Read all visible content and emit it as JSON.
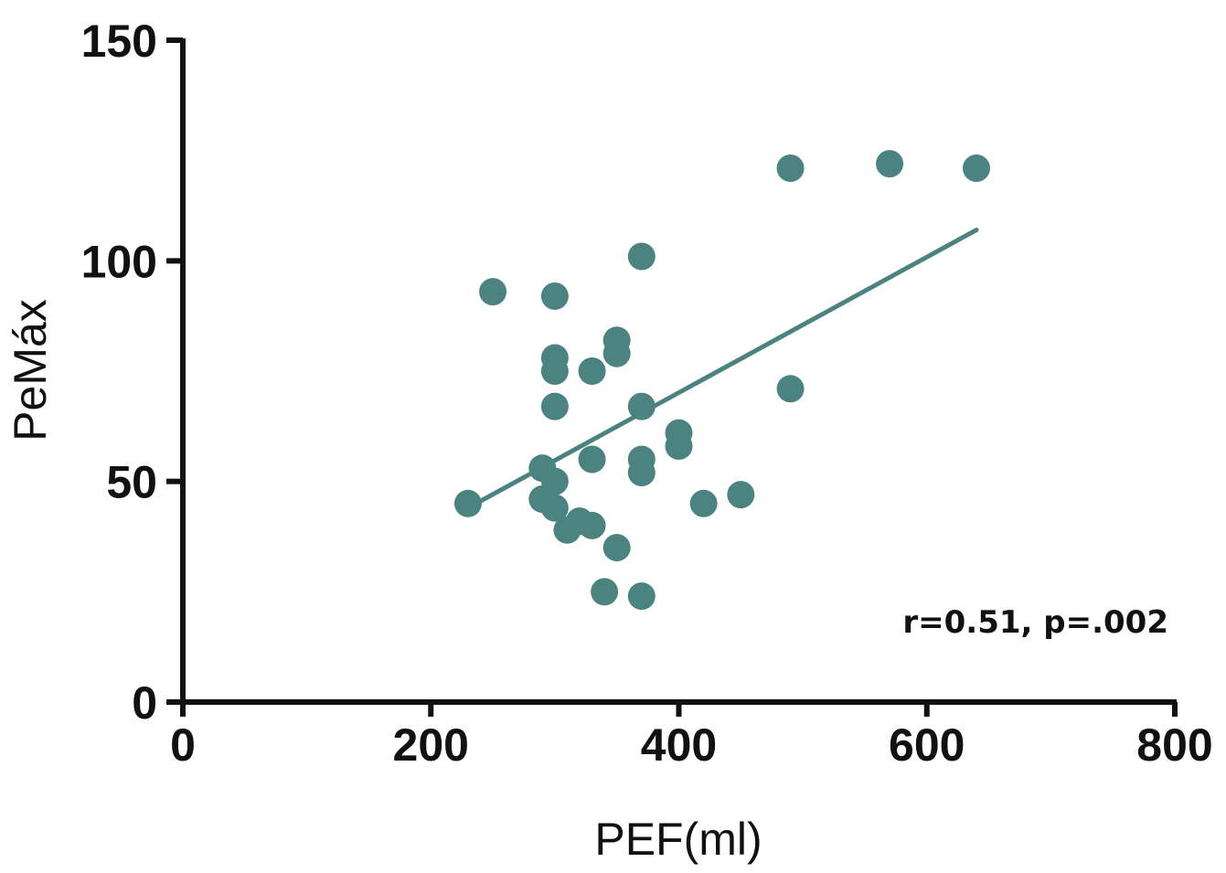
{
  "chart_data": {
    "type": "scatter",
    "xlabel": "PEF(ml)",
    "ylabel": "PeMáx",
    "xlim": [
      0,
      800
    ],
    "ylim": [
      0,
      150
    ],
    "x_ticks": [
      0,
      200,
      400,
      600,
      800
    ],
    "y_ticks": [
      0,
      50,
      100,
      150
    ],
    "x_tick_labels": [
      "0",
      "200",
      "400",
      "600",
      "800"
    ],
    "y_tick_labels": [
      "0",
      "50",
      "100",
      "150"
    ],
    "grid": false,
    "marker_color": "#4a8380",
    "line_color": "#4a8380",
    "axis_color": "#111111",
    "series": [
      {
        "points": [
          {
            "x": 230,
            "y": 45
          },
          {
            "x": 250,
            "y": 93
          },
          {
            "x": 290,
            "y": 53
          },
          {
            "x": 290,
            "y": 46
          },
          {
            "x": 300,
            "y": 92
          },
          {
            "x": 300,
            "y": 78
          },
          {
            "x": 300,
            "y": 75
          },
          {
            "x": 300,
            "y": 67
          },
          {
            "x": 300,
            "y": 50
          },
          {
            "x": 300,
            "y": 44
          },
          {
            "x": 310,
            "y": 39
          },
          {
            "x": 320,
            "y": 41
          },
          {
            "x": 330,
            "y": 75
          },
          {
            "x": 330,
            "y": 55
          },
          {
            "x": 330,
            "y": 40
          },
          {
            "x": 340,
            "y": 25
          },
          {
            "x": 350,
            "y": 82
          },
          {
            "x": 350,
            "y": 79
          },
          {
            "x": 350,
            "y": 35
          },
          {
            "x": 370,
            "y": 101
          },
          {
            "x": 370,
            "y": 67
          },
          {
            "x": 370,
            "y": 55
          },
          {
            "x": 370,
            "y": 52
          },
          {
            "x": 370,
            "y": 24
          },
          {
            "x": 400,
            "y": 61
          },
          {
            "x": 400,
            "y": 58
          },
          {
            "x": 420,
            "y": 45
          },
          {
            "x": 450,
            "y": 47
          },
          {
            "x": 490,
            "y": 121
          },
          {
            "x": 490,
            "y": 71
          },
          {
            "x": 570,
            "y": 122
          },
          {
            "x": 640,
            "y": 121
          }
        ]
      }
    ],
    "regression_line": {
      "x": [
        230,
        640
      ],
      "y": [
        44,
        107
      ]
    },
    "annotation": "r=0.51, p=.002"
  }
}
